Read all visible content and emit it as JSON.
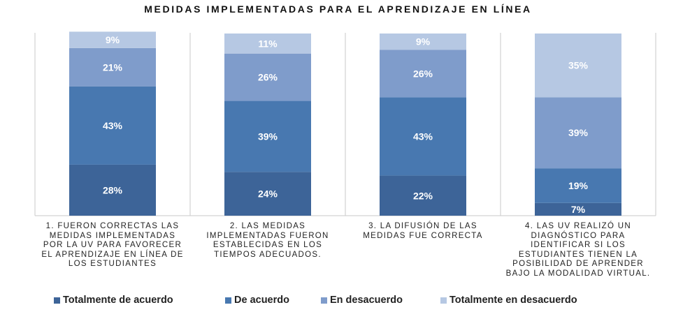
{
  "chart_data": {
    "type": "bar",
    "stacked": true,
    "title": "MEDIDAS IMPLEMENTADAS PARA EL APRENDIZAJE EN LÍNEA",
    "categories": [
      "1. FUERON CORRECTAS LAS MEDIDAS IMPLEMENTADAS POR LA UV PARA FAVORECER EL APRENDIZAJE EN LÍNEA DE LOS ESTUDIANTES",
      "2. LAS MEDIDAS IMPLEMENTADAS FUERON ESTABLECIDAS EN LOS TIEMPOS ADECUADOS.",
      "3. LA DIFUSIÓN DE LAS MEDIDAS FUE CORRECTA",
      "4. LAS UV REALIZÓ UN DIAGNÓSTICO PARA IDENTIFICAR SI LOS ESTUDIANTES TIENEN LA POSIBILIDAD DE APRENDER BAJO LA MODALIDAD VIRTUAL."
    ],
    "series": [
      {
        "name": "Totalmente de acuerdo",
        "color": "#3d6498",
        "values": [
          28,
          24,
          22,
          7
        ]
      },
      {
        "name": "De acuerdo",
        "color": "#4878b0",
        "values": [
          43,
          39,
          43,
          19
        ]
      },
      {
        "name": "En desacuerdo",
        "color": "#7f9ccb",
        "values": [
          21,
          26,
          26,
          39
        ]
      },
      {
        "name": "Totalmente en desacuerdo",
        "color": "#b6c8e3",
        "values": [
          9,
          11,
          9,
          35
        ]
      }
    ],
    "value_suffix": "%",
    "ylim": [
      0,
      100
    ],
    "legend_position": "bottom"
  }
}
